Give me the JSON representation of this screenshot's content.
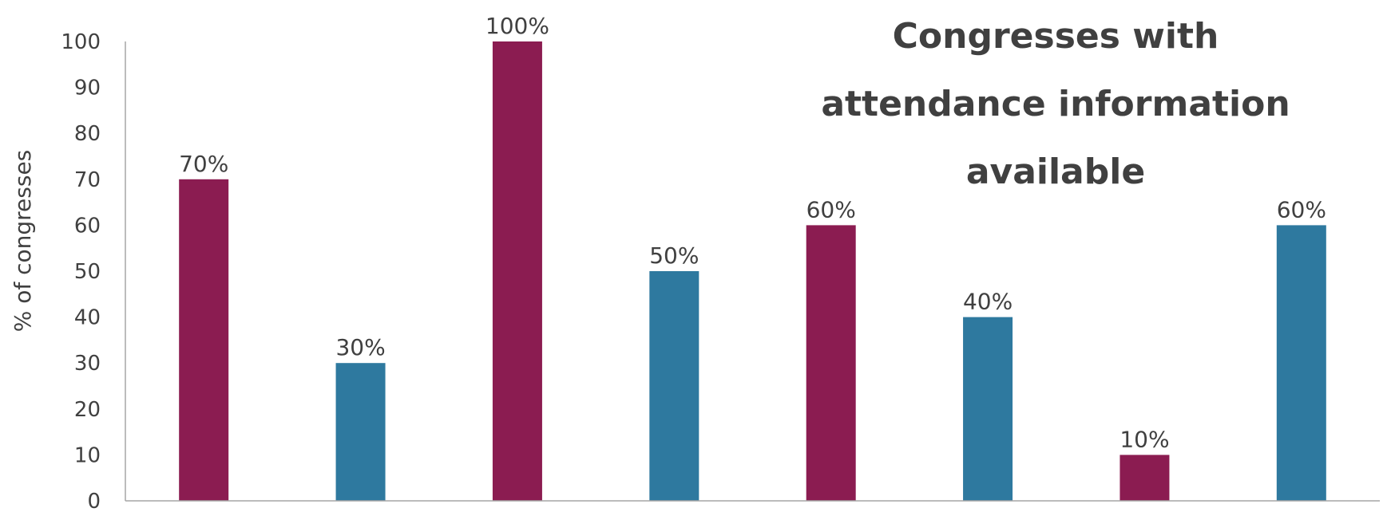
{
  "chart_data": {
    "type": "bar",
    "title_lines": [
      "Congresses with",
      "attendance information",
      "available"
    ],
    "ylabel": "% of congresses",
    "xlabel": "",
    "ylim": [
      0,
      100
    ],
    "yticks": [
      0,
      10,
      20,
      30,
      40,
      50,
      60,
      70,
      80,
      90,
      100
    ],
    "grid": false,
    "values": [
      70,
      30,
      100,
      50,
      60,
      40,
      10,
      60
    ],
    "data_labels": [
      "70%",
      "30%",
      "100%",
      "50%",
      "60%",
      "40%",
      "10%",
      "60%"
    ],
    "bar_colors": [
      "#8B1C51",
      "#2E799F",
      "#8B1C51",
      "#2E799F",
      "#8B1C51",
      "#2E799F",
      "#8B1C51",
      "#2E799F"
    ],
    "axis_color": "#A6A6A6"
  }
}
